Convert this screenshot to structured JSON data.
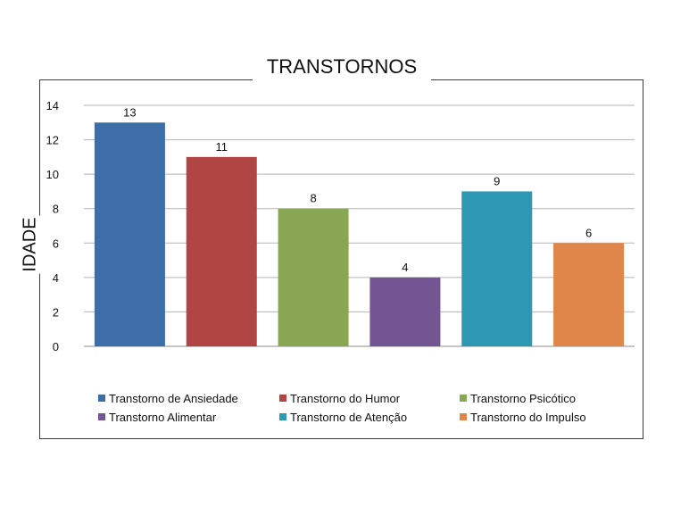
{
  "chart_data": {
    "type": "bar",
    "title": "TRANSTORNOS",
    "ylabel": "IDADE",
    "xlabel": "",
    "ylim": [
      0,
      14
    ],
    "yticks": [
      0,
      2,
      4,
      6,
      8,
      10,
      12,
      14
    ],
    "grid": true,
    "legend_position": "bottom",
    "categories": [
      "Transtorno de Ansiedade",
      "Transtorno do Humor",
      "Transtorno Psicótico",
      "Transtorno Alimentar",
      "Transtorno de Atenção",
      "Transtorno do Impulso"
    ],
    "values": [
      13,
      11,
      8,
      4,
      9,
      6
    ],
    "colors": [
      "#3e6ea8",
      "#b04543",
      "#88a653",
      "#725592",
      "#2d98b2",
      "#e0864a"
    ]
  }
}
